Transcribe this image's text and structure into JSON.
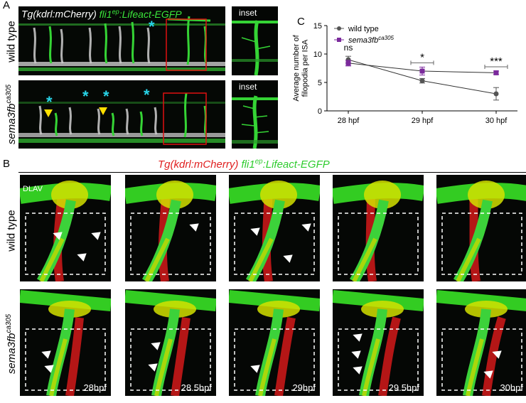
{
  "panelA": {
    "letter": "A",
    "title_part1": "Tg(kdrl:mCherry) ",
    "title_part2_main": "fli1",
    "title_part2_sup": "ep",
    "title_part2_rest": ":Lifeact-EGFP",
    "row1_label": "wild type",
    "row2_label_main": "sema3fb",
    "row2_label_sup": "ca305",
    "inset_label": "inset"
  },
  "panelB": {
    "letter": "B",
    "title_red": "Tg(kdrl:mCherry) ",
    "title_green_main": "fli1",
    "title_green_sup": "ep",
    "title_green_rest": ":Lifeact-EGFP",
    "row1_label": "wild type",
    "row2_label_main": "sema3fb",
    "row2_label_sup": "ca305",
    "dlav_label": "DLAV",
    "timepoints": [
      "28hpf",
      "28.5hpf",
      "29hpf",
      "29.5hpf",
      "30hpf"
    ]
  },
  "panelC": {
    "letter": "C",
    "chart_data": {
      "type": "line",
      "ylabel": "Average number of filopodia per ISA",
      "xlabel": "",
      "categories": [
        "28 hpf",
        "29 hpf",
        "30 hpf"
      ],
      "ylim": [
        0,
        15
      ],
      "yticks": [
        0,
        5,
        10,
        15
      ],
      "legend_position": "top-right",
      "series": [
        {
          "name": "wild type",
          "color": "#555555",
          "marker": "circle",
          "values": [
            9.0,
            5.3,
            3.0
          ],
          "errors": [
            0.6,
            0.4,
            1.1
          ]
        },
        {
          "name_main": "sema3fb",
          "name_sup": "ca305",
          "color": "#7b2a9c",
          "marker": "square",
          "values": [
            8.4,
            7.0,
            6.7
          ],
          "errors": [
            0.5,
            0.7,
            0.3
          ]
        }
      ],
      "significance": [
        "ns",
        "*",
        "***"
      ]
    }
  }
}
